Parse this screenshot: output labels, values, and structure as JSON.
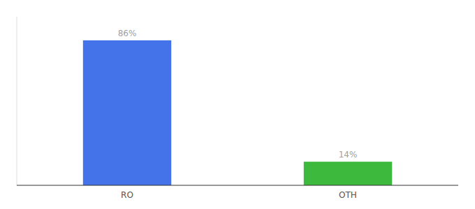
{
  "chart_data": {
    "type": "bar",
    "categories": [
      "RO",
      "OTH"
    ],
    "values": [
      86,
      14
    ],
    "colors": [
      "#4472e8",
      "#3dba3d"
    ],
    "ylim": [
      0,
      100
    ],
    "data_labels": true,
    "value_labels": [
      "86%",
      "14%"
    ],
    "tick_labels": "x",
    "grid": false
  }
}
